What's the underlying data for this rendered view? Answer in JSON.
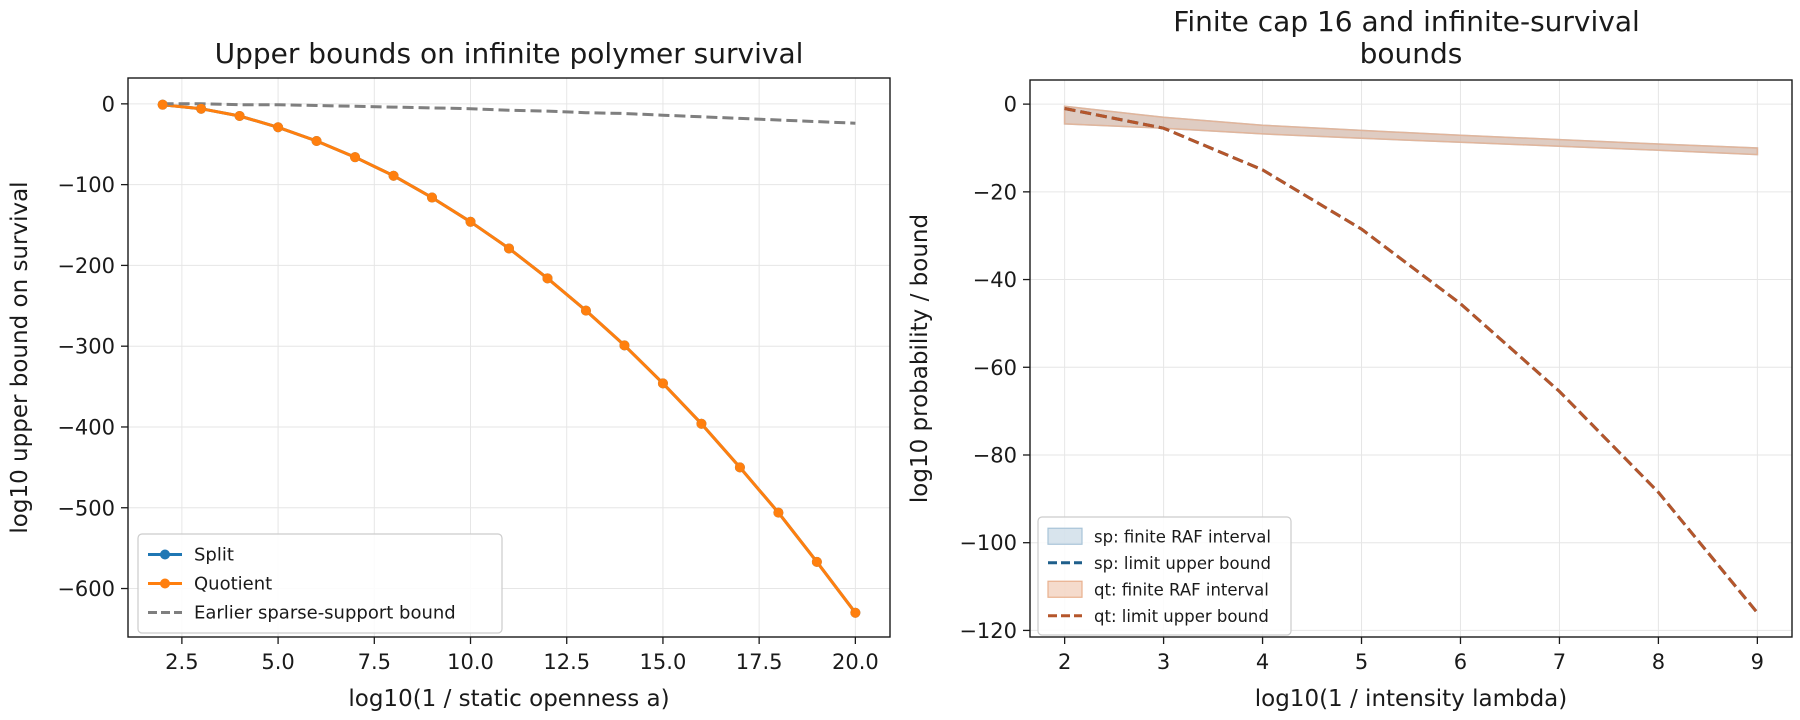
{
  "chart_data": [
    {
      "type": "line",
      "title": "Upper bounds on infinite polymer survival",
      "xlabel": "log10(1 / static openness a)",
      "ylabel": "log10 upper bound on survival",
      "xlim": [
        1.1,
        20.9
      ],
      "ylim": [
        -660,
        32
      ],
      "xticks": [
        2.5,
        5.0,
        7.5,
        10.0,
        12.5,
        15.0,
        17.5,
        20.0
      ],
      "xtick_labels": [
        "2.5",
        "5.0",
        "7.5",
        "10.0",
        "12.5",
        "15.0",
        "17.5",
        "20.0"
      ],
      "yticks": [
        0,
        -100,
        -200,
        -300,
        -400,
        -500,
        -600
      ],
      "ytick_labels": [
        "0",
        "−100",
        "−200",
        "−300",
        "−400",
        "−500",
        "−600"
      ],
      "grid": true,
      "legend_position": "lower-left",
      "x": [
        2,
        3,
        4,
        5,
        6,
        7,
        8,
        9,
        10,
        11,
        12,
        13,
        14,
        15,
        16,
        17,
        18,
        19,
        20
      ],
      "series": [
        {
          "name": "Split",
          "color": "#1f77b4",
          "style": "solid-marker",
          "values": [
            -1,
            -6,
            -15,
            -29,
            -46,
            -66,
            -89,
            -116,
            -146,
            -179,
            -216,
            -256,
            -299,
            -346,
            -396,
            -450,
            -506,
            -567,
            -630
          ]
        },
        {
          "name": "Quotient",
          "color": "#ff7f0e",
          "style": "solid-marker",
          "values": [
            -1,
            -6,
            -15,
            -29,
            -46,
            -66,
            -89,
            -116,
            -146,
            -179,
            -216,
            -256,
            -299,
            -346,
            -396,
            -450,
            -506,
            -567,
            -630
          ]
        },
        {
          "name": "Earlier sparse-support bound",
          "color": "#7f7f7f",
          "style": "dashed",
          "values": [
            0,
            0,
            -1,
            -1,
            -2,
            -3,
            -4,
            -5,
            -6,
            -8,
            -9,
            -11,
            -12,
            -14,
            -16,
            -18,
            -20,
            -22,
            -24
          ]
        }
      ]
    },
    {
      "type": "area",
      "title": "Finite cap 16 and infinite-survival bounds",
      "title_lines": [
        "Finite cap 16 and infinite-survival",
        "bounds"
      ],
      "xlabel": "log10(1 / intensity lambda)",
      "ylabel": "log10 probability / bound",
      "xlim": [
        1.65,
        9.35
      ],
      "ylim": [
        -121.5,
        5.5
      ],
      "xticks": [
        2,
        3,
        4,
        5,
        6,
        7,
        8,
        9
      ],
      "xtick_labels": [
        "2",
        "3",
        "4",
        "5",
        "6",
        "7",
        "8",
        "9"
      ],
      "yticks": [
        0,
        -20,
        -40,
        -60,
        -80,
        -100,
        -120
      ],
      "ytick_labels": [
        "0",
        "−20",
        "−40",
        "−60",
        "−80",
        "−100",
        "−120"
      ],
      "grid": true,
      "legend_position": "lower-left",
      "x": [
        2,
        3,
        4,
        5,
        6,
        7,
        8,
        9
      ],
      "bands": [
        {
          "name": "sp: finite RAF interval",
          "color": "#a8c4d8",
          "lower": [
            -4.5,
            -5.5,
            -6.8,
            -7.8,
            -8.7,
            -9.6,
            -10.5,
            -11.5
          ],
          "upper": [
            -0.5,
            -3.0,
            -4.8,
            -6.0,
            -7.1,
            -8.1,
            -9.1,
            -10.0
          ]
        },
        {
          "name": "qt: finite RAF interval",
          "color": "#e8b08e",
          "lower": [
            -4.5,
            -5.5,
            -6.8,
            -7.8,
            -8.7,
            -9.6,
            -10.5,
            -11.5
          ],
          "upper": [
            -0.5,
            -3.0,
            -4.8,
            -6.0,
            -7.1,
            -8.1,
            -9.1,
            -10.0
          ]
        }
      ],
      "series": [
        {
          "name": "sp: limit upper bound",
          "color": "#1f5f8b",
          "style": "dashed",
          "values": [
            -1,
            -5.5,
            -15,
            -28.5,
            -45.5,
            -65.5,
            -88.5,
            -116
          ]
        },
        {
          "name": "qt: limit upper bound",
          "color": "#b5562b",
          "style": "dashed",
          "values": [
            -1,
            -5.5,
            -15,
            -28.5,
            -45.5,
            -65.5,
            -88.5,
            -116
          ]
        }
      ]
    }
  ]
}
